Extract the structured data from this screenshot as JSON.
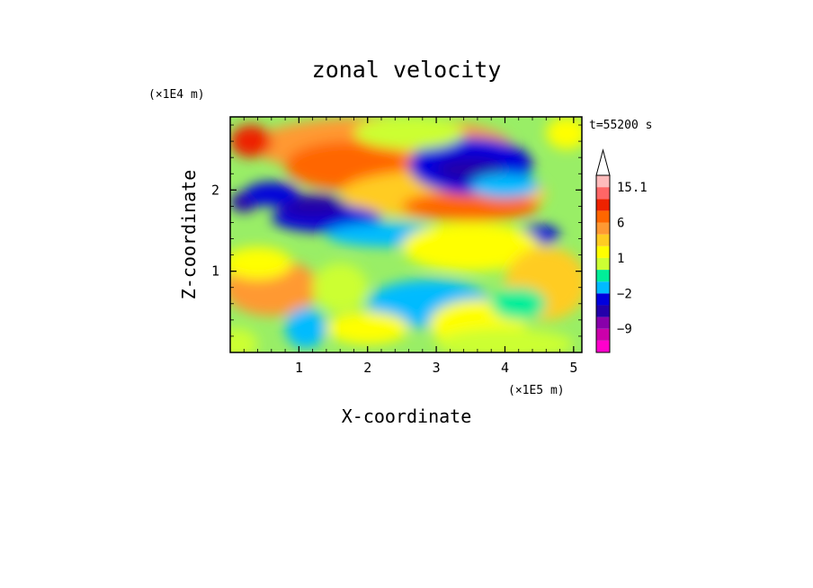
{
  "chart_data": {
    "type": "heatmap",
    "title": "zonal velocity",
    "xlabel": "X-coordinate",
    "ylabel": "Z-coordinate",
    "x_unit": "(×1E5 m)",
    "y_unit": "(×1E4 m)",
    "time_label": "t=55200 s",
    "xlim": [
      0,
      5.12
    ],
    "ylim": [
      0,
      2.9
    ],
    "x_ticks": [
      1,
      2,
      3,
      4,
      5
    ],
    "y_ticks": [
      1,
      2
    ],
    "colorbar": {
      "labels": [
        {
          "value": 15.1,
          "text": "15.1"
        },
        {
          "value": 6,
          "text": "6"
        },
        {
          "value": 1,
          "text": "1"
        },
        {
          "value": -2,
          "text": "−2"
        },
        {
          "value": -9,
          "text": "−9"
        }
      ],
      "levels": [
        -15,
        -12,
        -9,
        -6,
        -3,
        -2,
        -1,
        0,
        1,
        2,
        3,
        6,
        9,
        12,
        15.1
      ],
      "colors": [
        "#ff00cc",
        "#cc00aa",
        "#8800aa",
        "#2200aa",
        "#0000dd",
        "#00bbff",
        "#00ee99",
        "#ccff33",
        "#ffff00",
        "#ffcc22",
        "#ff9933",
        "#ff6600",
        "#ee2200",
        "#ff6666",
        "#ffbbbb"
      ],
      "over_arrow_color": "#ffffff"
    },
    "grid": false
  }
}
